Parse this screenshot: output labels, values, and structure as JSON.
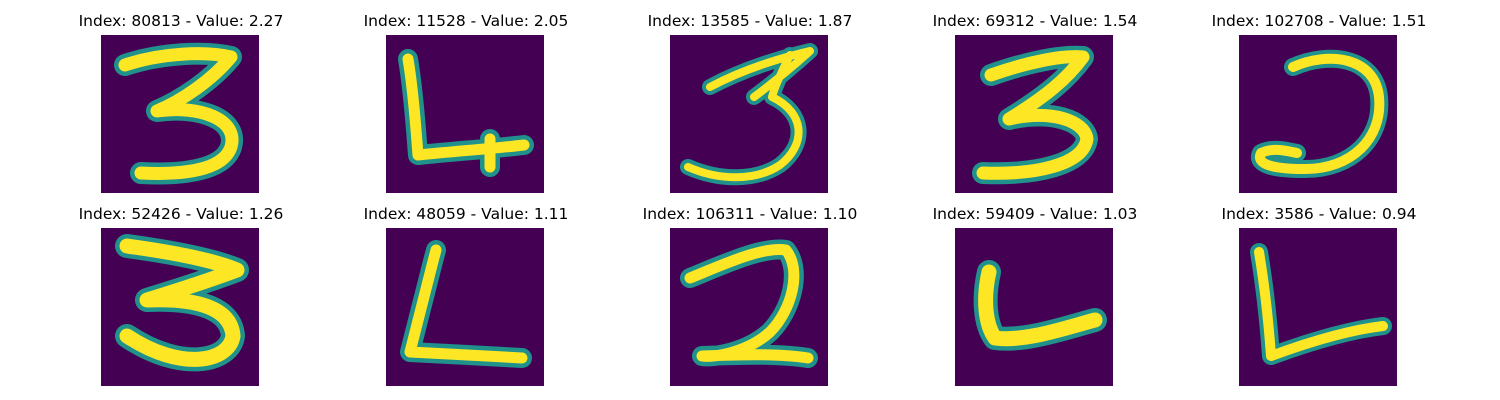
{
  "colors": {
    "background": "#440154",
    "edge": "#21918c",
    "mid": "#5ec962",
    "stroke": "#fde725"
  },
  "panels": [
    {
      "title": "Index: 80813 - Value: 2.27",
      "digit_icon": "digit-3-icon"
    },
    {
      "title": "Index: 11528 - Value: 2.05",
      "digit_icon": "digit-L-icon"
    },
    {
      "title": "Index: 13585 - Value: 1.87",
      "digit_icon": "digit-3-icon"
    },
    {
      "title": "Index: 69312 - Value: 1.54",
      "digit_icon": "digit-3-icon"
    },
    {
      "title": "Index: 102708 - Value: 1.51",
      "digit_icon": "digit-reversed-c-icon"
    },
    {
      "title": "Index: 52426 - Value: 1.26",
      "digit_icon": "digit-3-icon"
    },
    {
      "title": "Index: 48059 - Value: 1.11",
      "digit_icon": "digit-L-icon"
    },
    {
      "title": "Index: 106311 - Value: 1.10",
      "digit_icon": "digit-2-icon"
    },
    {
      "title": "Index: 59409 - Value: 1.03",
      "digit_icon": "digit-L-icon"
    },
    {
      "title": "Index: 3586 - Value: 0.94",
      "digit_icon": "digit-L-icon"
    }
  ]
}
